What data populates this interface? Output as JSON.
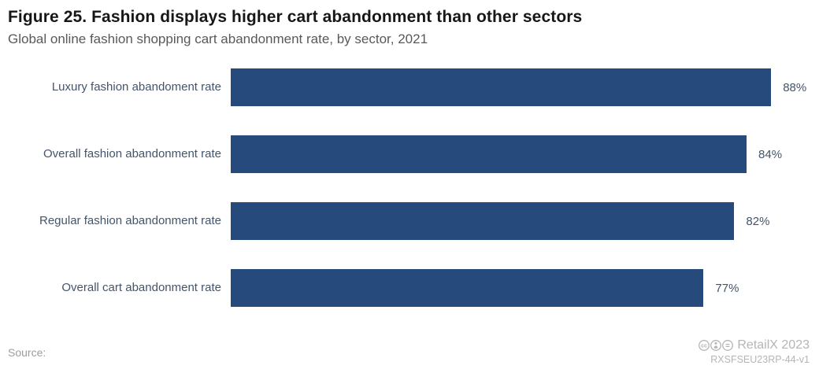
{
  "header": {
    "title": "Figure 25. Fashion displays higher cart abandonment than other sectors",
    "subtitle": "Global online fashion shopping cart abandonment rate, by sector, 2021"
  },
  "chart_data": {
    "type": "bar",
    "orientation": "horizontal",
    "title": "Figure 25. Fashion displays higher cart abandonment than other sectors",
    "subtitle": "Global online fashion shopping cart abandonment rate, by sector, 2021",
    "categories": [
      "Luxury fashion abandoment rate",
      "Overall fashion abandonment rate",
      "Regular fashion abandonment rate",
      "Overall cart abandonment rate"
    ],
    "values": [
      88,
      84,
      82,
      77
    ],
    "value_labels": [
      "88%",
      "84%",
      "82%",
      "77%"
    ],
    "xlabel": "",
    "ylabel": "",
    "xlim": [
      0,
      94
    ],
    "grid": false,
    "legend": false,
    "bar_color": "#264a7c",
    "label_color": "#44546a"
  },
  "footer": {
    "source_label": "Source:",
    "license_icons": [
      "cc-icon",
      "cc-by-icon",
      "cc-nd-icon"
    ],
    "branding": "RetailX 2023",
    "report_code": "RXSFSEU23RP-44-v1"
  }
}
